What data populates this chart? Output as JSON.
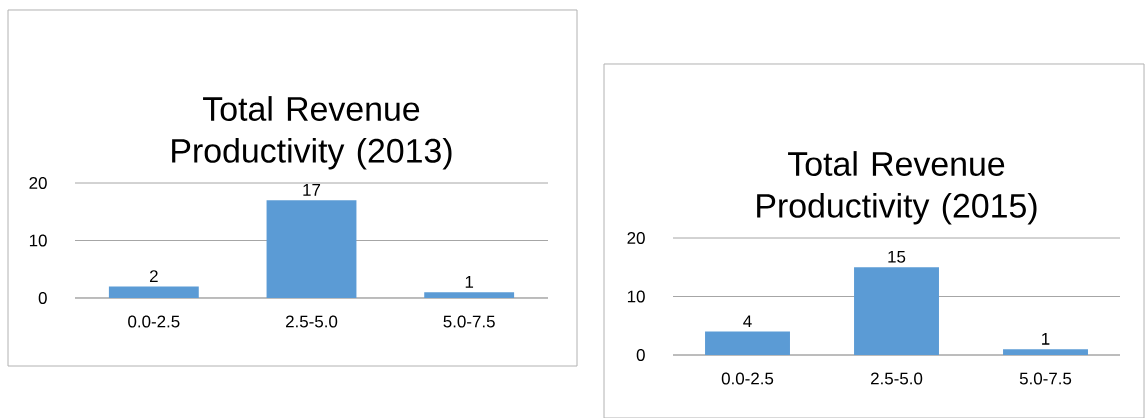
{
  "chart_data": [
    {
      "type": "bar",
      "title": "Total Revenue Productivity (2013)",
      "categories": [
        "0.0-2.5",
        "2.5-5.0",
        "5.0-7.5"
      ],
      "values": [
        2,
        17,
        1
      ],
      "color": "#5b9bd5",
      "ylim": [
        0,
        20
      ],
      "yticks": [
        0,
        10,
        20
      ],
      "grid": "y",
      "data_labels": true
    },
    {
      "type": "bar",
      "title": "Total Revenue Productivity (2015)",
      "categories": [
        "0.0-2.5",
        "2.5-5.0",
        "5.0-7.5"
      ],
      "values": [
        4,
        15,
        1
      ],
      "color": "#5b9bd5",
      "ylim": [
        0,
        20
      ],
      "yticks": [
        0,
        10,
        20
      ],
      "grid": "y",
      "data_labels": true
    }
  ]
}
